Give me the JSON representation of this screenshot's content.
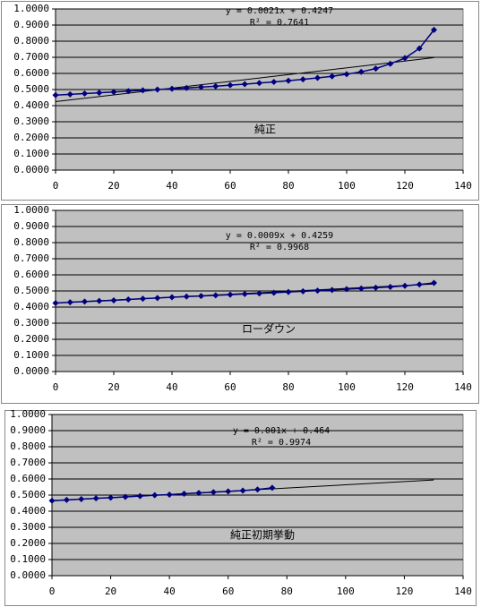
{
  "chart_data": [
    {
      "type": "scatter",
      "color": "#000080",
      "grid": true,
      "x": [
        0,
        5,
        10,
        15,
        20,
        25,
        30,
        35,
        40,
        45,
        50,
        55,
        60,
        65,
        70,
        75,
        80,
        85,
        90,
        95,
        100,
        105,
        110,
        115,
        120,
        125,
        130
      ],
      "values": [
        0.465,
        0.47,
        0.475,
        0.48,
        0.485,
        0.49,
        0.495,
        0.5,
        0.505,
        0.51,
        0.515,
        0.52,
        0.527,
        0.533,
        0.54,
        0.547,
        0.555,
        0.563,
        0.572,
        0.582,
        0.595,
        0.61,
        0.63,
        0.66,
        0.695,
        0.755,
        0.87
      ],
      "trendline": {
        "equation": "y = 0.0021x + 0.4247",
        "r2_label": "R² = 0.7641",
        "slope": 0.0021,
        "intercept": 0.4247,
        "x_range": [
          0,
          130
        ]
      },
      "annotation": "純正",
      "xlim": [
        0,
        140
      ],
      "xticks": [
        0,
        20,
        40,
        60,
        80,
        100,
        120,
        140
      ],
      "ylim": [
        0,
        1
      ],
      "yticks": [
        {
          "value": 0,
          "label": "0.0000"
        },
        {
          "value": 0.1,
          "label": "0.1000"
        },
        {
          "value": 0.2,
          "label": "0.2000"
        },
        {
          "value": 0.3,
          "label": "0.3000"
        },
        {
          "value": 0.4,
          "label": "0.4000"
        },
        {
          "value": 0.5,
          "label": "0.5000"
        },
        {
          "value": 0.6,
          "label": "0.6000"
        },
        {
          "value": 0.7,
          "label": "0.7000"
        },
        {
          "value": 0.8,
          "label": "0.8000"
        },
        {
          "value": 0.9,
          "label": "0.9000"
        },
        {
          "value": 1,
          "label": "1.0000"
        }
      ]
    },
    {
      "type": "scatter",
      "color": "#000080",
      "grid": true,
      "x": [
        0,
        5,
        10,
        15,
        20,
        25,
        30,
        35,
        40,
        45,
        50,
        55,
        60,
        65,
        70,
        75,
        80,
        85,
        90,
        95,
        100,
        105,
        110,
        115,
        120,
        125,
        130
      ],
      "values": [
        0.425,
        0.43,
        0.434,
        0.438,
        0.442,
        0.447,
        0.452,
        0.456,
        0.461,
        0.465,
        0.469,
        0.473,
        0.477,
        0.481,
        0.485,
        0.489,
        0.494,
        0.498,
        0.502,
        0.506,
        0.511,
        0.515,
        0.52,
        0.525,
        0.532,
        0.54,
        0.55
      ],
      "trendline": {
        "equation": "y = 0.0009x + 0.4259",
        "r2_label": "R² = 0.9968",
        "slope": 0.0009,
        "intercept": 0.4259,
        "x_range": [
          0,
          130
        ]
      },
      "annotation": "ローダウン",
      "xlim": [
        0,
        140
      ],
      "xticks": [
        0,
        20,
        40,
        60,
        80,
        100,
        120,
        140
      ],
      "ylim": [
        0,
        1
      ],
      "yticks": [
        {
          "value": 0,
          "label": "0.0000"
        },
        {
          "value": 0.1,
          "label": "0.1000"
        },
        {
          "value": 0.2,
          "label": "0.2000"
        },
        {
          "value": 0.3,
          "label": "0.3000"
        },
        {
          "value": 0.4,
          "label": "0.4000"
        },
        {
          "value": 0.5,
          "label": "0.5000"
        },
        {
          "value": 0.6,
          "label": "0.6000"
        },
        {
          "value": 0.7,
          "label": "0.7000"
        },
        {
          "value": 0.8,
          "label": "0.8000"
        },
        {
          "value": 0.9,
          "label": "0.9000"
        },
        {
          "value": 1,
          "label": "1.0000"
        }
      ]
    },
    {
      "type": "scatter",
      "color": "#000080",
      "grid": true,
      "x": [
        0,
        5,
        10,
        15,
        20,
        25,
        30,
        35,
        40,
        45,
        50,
        55,
        60,
        65,
        70,
        75
      ],
      "values": [
        0.465,
        0.47,
        0.475,
        0.48,
        0.484,
        0.489,
        0.494,
        0.499,
        0.503,
        0.508,
        0.513,
        0.518,
        0.523,
        0.528,
        0.535,
        0.545
      ],
      "trendline": {
        "equation": "y = 0.001x + 0.464",
        "r2_label": "R² = 0.9974",
        "slope": 0.001,
        "intercept": 0.464,
        "x_range": [
          0,
          130
        ]
      },
      "annotation": "純正初期挙動",
      "xlim": [
        0,
        140
      ],
      "xticks": [
        0,
        20,
        40,
        60,
        80,
        100,
        120,
        140
      ],
      "ylim": [
        0,
        1
      ],
      "yticks": [
        {
          "value": 0,
          "label": "0.0000"
        },
        {
          "value": 0.1,
          "label": "0.1000"
        },
        {
          "value": 0.2,
          "label": "0.2000"
        },
        {
          "value": 0.3,
          "label": "0.3000"
        },
        {
          "value": 0.4,
          "label": "0.4000"
        },
        {
          "value": 0.5,
          "label": "0.5000"
        },
        {
          "value": 0.6,
          "label": "0.6000"
        },
        {
          "value": 0.7,
          "label": "0.7000"
        },
        {
          "value": 0.8,
          "label": "0.8000"
        },
        {
          "value": 0.9,
          "label": "0.9000"
        },
        {
          "value": 1,
          "label": "1.0000"
        }
      ]
    }
  ]
}
